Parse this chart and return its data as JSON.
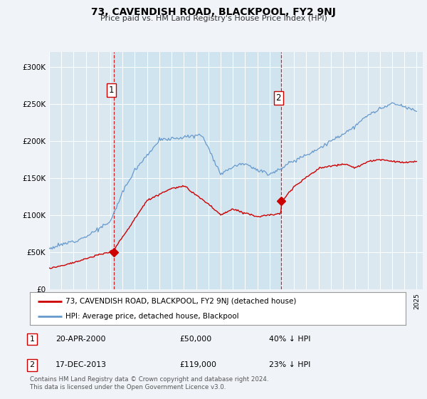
{
  "title": "73, CAVENDISH ROAD, BLACKPOOL, FY2 9NJ",
  "subtitle": "Price paid vs. HM Land Registry's House Price Index (HPI)",
  "legend_line1": "73, CAVENDISH ROAD, BLACKPOOL, FY2 9NJ (detached house)",
  "legend_line2": "HPI: Average price, detached house, Blackpool",
  "annotation1_label": "1",
  "annotation1_date": "20-APR-2000",
  "annotation1_price": "£50,000",
  "annotation1_hpi": "40% ↓ HPI",
  "annotation2_label": "2",
  "annotation2_date": "17-DEC-2013",
  "annotation2_price": "£119,000",
  "annotation2_hpi": "23% ↓ HPI",
  "footer": "Contains HM Land Registry data © Crown copyright and database right 2024.\nThis data is licensed under the Open Government Licence v3.0.",
  "red_line_color": "#cc0000",
  "blue_line_color": "#6699cc",
  "background_color": "#f0f4f8",
  "plot_bg_color": "#dce8f0",
  "shaded_color": "#d0e4f0",
  "grid_color": "#ffffff",
  "annotation_dot_color": "#cc0000",
  "dashed_line_color": "#cc0000",
  "sale1_year": 2000.29,
  "sale1_price": 50000,
  "sale2_year": 2013.92,
  "sale2_price": 119000,
  "ylim": [
    0,
    320000
  ],
  "yticks": [
    0,
    50000,
    100000,
    150000,
    200000,
    250000,
    300000
  ],
  "ytick_labels": [
    "£0",
    "£50K",
    "£100K",
    "£150K",
    "£200K",
    "£250K",
    "£300K"
  ],
  "xlim_start": 1995,
  "xlim_end": 2025.5
}
